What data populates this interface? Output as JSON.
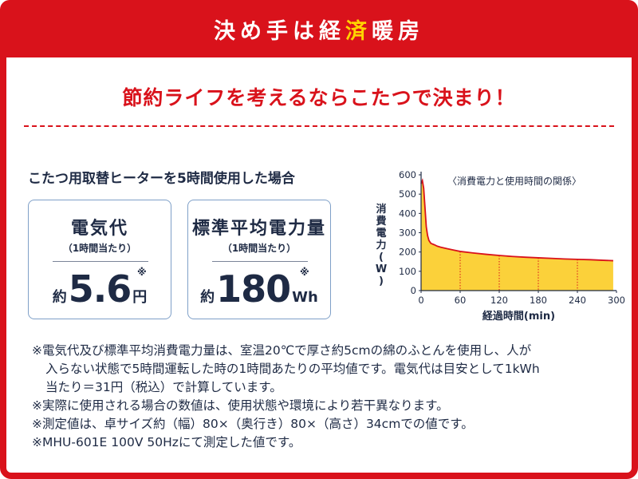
{
  "banner": {
    "part1": "決め手は経",
    "accent": "済",
    "part2": "暖房"
  },
  "catchphrase": "節約ライフを考えるならこたつで決まり！",
  "case_title": "こたつ用取替ヒーターを5時間使用した場合",
  "cards": [
    {
      "title": "電気代",
      "subtitle": "（1時間当たり）",
      "prefix": "約",
      "value": "5.6",
      "unit": "円",
      "mark": "※"
    },
    {
      "title": "標準平均電力量",
      "subtitle": "（1時間当たり）",
      "prefix": "約",
      "value": "180",
      "unit": "Wh",
      "mark": "※"
    }
  ],
  "notes": [
    "※電気代及び標準平均消費電力量は、室温20℃で厚さ約5cmの綿のふとんを使用し、人が",
    "入らない状態で5時間運転した時の1時間あたりの平均値です。電気代は目安として1kWh",
    "当たり＝31円（税込）で計算しています。",
    "※実際に使用される場合の数値は、使用状態や環境により若干異なります。",
    "※測定値は、卓サイズ約（幅）80×（奥行き）80×（高さ）34cmでの値です。",
    "※MHU-601E  100V  50Hzにて測定した値です。"
  ],
  "colors": {
    "brand_red": "#d9121b",
    "accent_yellow": "#ffd400",
    "fill_yellow": "#fbd13a",
    "text_navy": "#1e2a44"
  },
  "chart_data": {
    "type": "area",
    "title": "〈消費電力と使用時間の関係〉",
    "xlabel": "経過時間(min)",
    "ylabel": "消費電力(W)",
    "xlim": [
      0,
      300
    ],
    "ylim": [
      0,
      600
    ],
    "xticks": [
      "0",
      "60",
      "120",
      "180",
      "240",
      "300"
    ],
    "yticks": [
      "0",
      "100",
      "200",
      "300",
      "400",
      "500",
      "600"
    ],
    "grid": false,
    "series": [
      {
        "x": [
          0,
          2,
          4,
          6,
          8,
          10,
          12,
          15,
          20,
          25,
          30,
          40,
          50,
          60,
          80,
          100,
          120,
          140,
          160,
          180,
          200,
          220,
          240,
          260,
          280,
          295
        ],
        "y": [
          555,
          570,
          530,
          430,
          330,
          285,
          260,
          245,
          238,
          230,
          225,
          217,
          210,
          203,
          195,
          188,
          182,
          177,
          173,
          170,
          167,
          164,
          162,
          160,
          157,
          155
        ]
      }
    ]
  }
}
